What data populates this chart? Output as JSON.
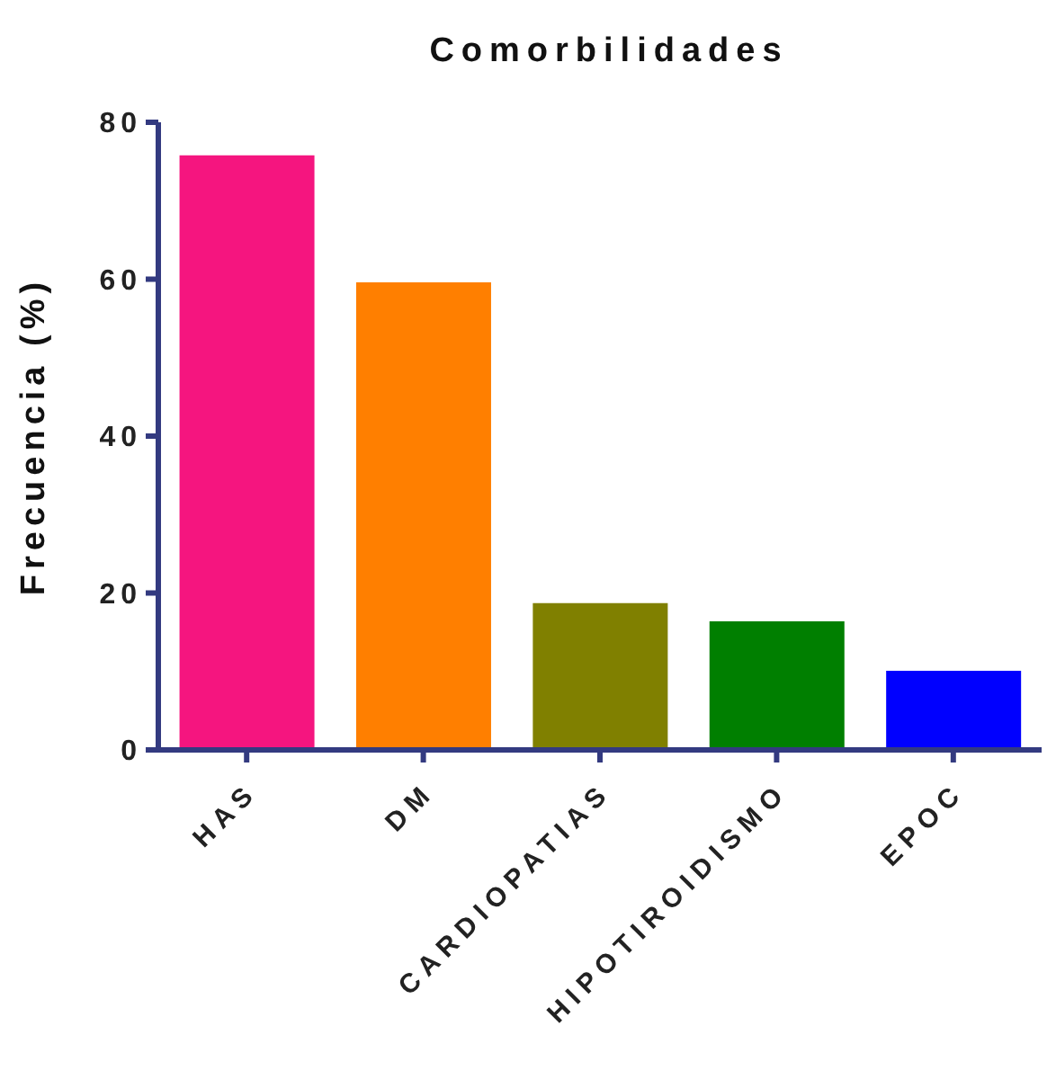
{
  "chart_data": {
    "type": "bar",
    "title": "Comorbilidades",
    "ylabel": "Frecuencia (%)",
    "categories": [
      "HAS",
      "DM",
      "CARDIOPATIAS",
      "HIPOTIROIDISMO",
      "EPOC"
    ],
    "values": [
      75.8,
      59.6,
      18.7,
      16.4,
      10.1
    ],
    "colors": [
      "#f5157f",
      "#ff7f00",
      "#808000",
      "#007f00",
      "#0000ff"
    ],
    "ylim": [
      0,
      80
    ],
    "yticks": [
      0,
      20,
      40,
      60,
      80
    ],
    "grid": false
  }
}
